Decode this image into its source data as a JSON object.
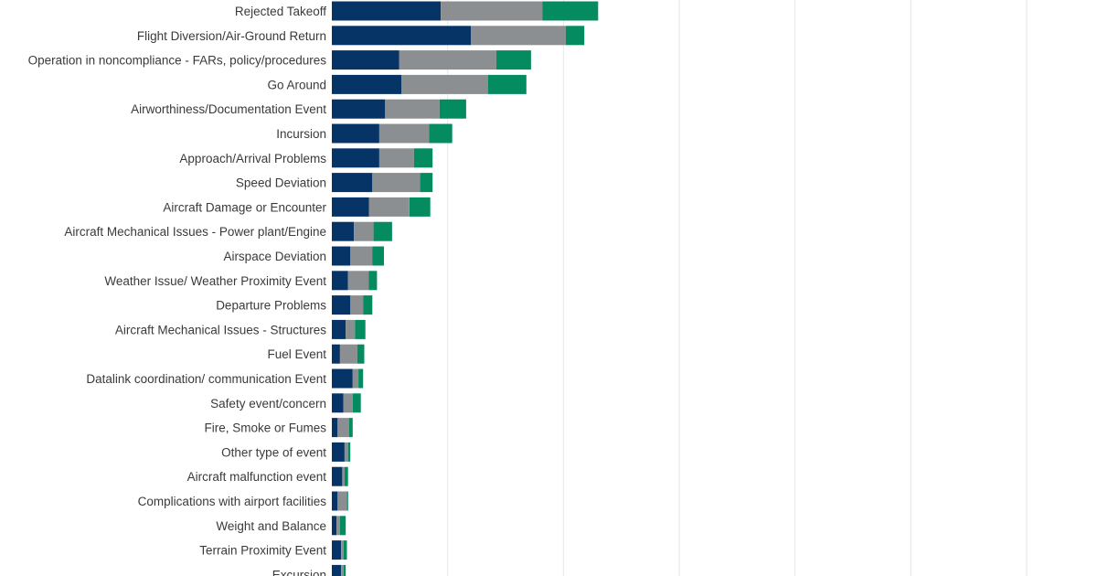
{
  "chart_data": {
    "type": "bar",
    "orientation": "horizontal",
    "stacked": true,
    "grid": true,
    "categories": [
      "Rejected Takeoff",
      "Flight Diversion/Air-Ground Return",
      "Operation in noncompliance - FARs, policy/procedures",
      "Go Around",
      "Airworthiness/Documentation Event",
      "Incursion",
      "Approach/Arrival Problems",
      "Speed Deviation",
      "Aircraft Damage or Encounter",
      "Aircraft Mechanical Issues - Power plant/Engine",
      "Airspace Deviation",
      "Weather Issue/ Weather Proximity Event",
      "Departure Problems",
      "Aircraft Mechanical Issues - Structures",
      "Fuel Event",
      "Datalink coordination/ communication Event",
      "Safety event/concern",
      "Fire, Smoke or Fumes",
      "Other type of event",
      "Aircraft malfunction event",
      "Complications with airport facilities",
      "Weight and Balance",
      "Terrain Proximity Event",
      "Excursion"
    ],
    "series": [
      {
        "color": "#063467",
        "values": [
          94,
          120,
          58,
          60,
          46,
          41,
          41,
          35,
          32,
          19,
          16,
          14,
          16,
          12,
          7,
          18,
          10,
          5,
          11,
          9,
          5,
          4,
          8,
          8
        ]
      },
      {
        "color": "#8c8f91",
        "values": [
          88,
          82,
          84,
          75,
          47,
          43,
          30,
          41,
          35,
          17,
          19,
          18,
          11,
          8,
          15,
          5,
          8,
          10,
          3,
          2,
          8,
          3,
          2,
          2
        ]
      },
      {
        "color": "#058b60",
        "values": [
          48,
          16,
          30,
          33,
          23,
          20,
          16,
          11,
          18,
          16,
          10,
          7,
          8,
          9,
          6,
          4,
          7,
          3,
          2,
          3,
          1,
          5,
          3,
          2
        ]
      }
    ],
    "xlim": [
      0,
      650
    ]
  }
}
